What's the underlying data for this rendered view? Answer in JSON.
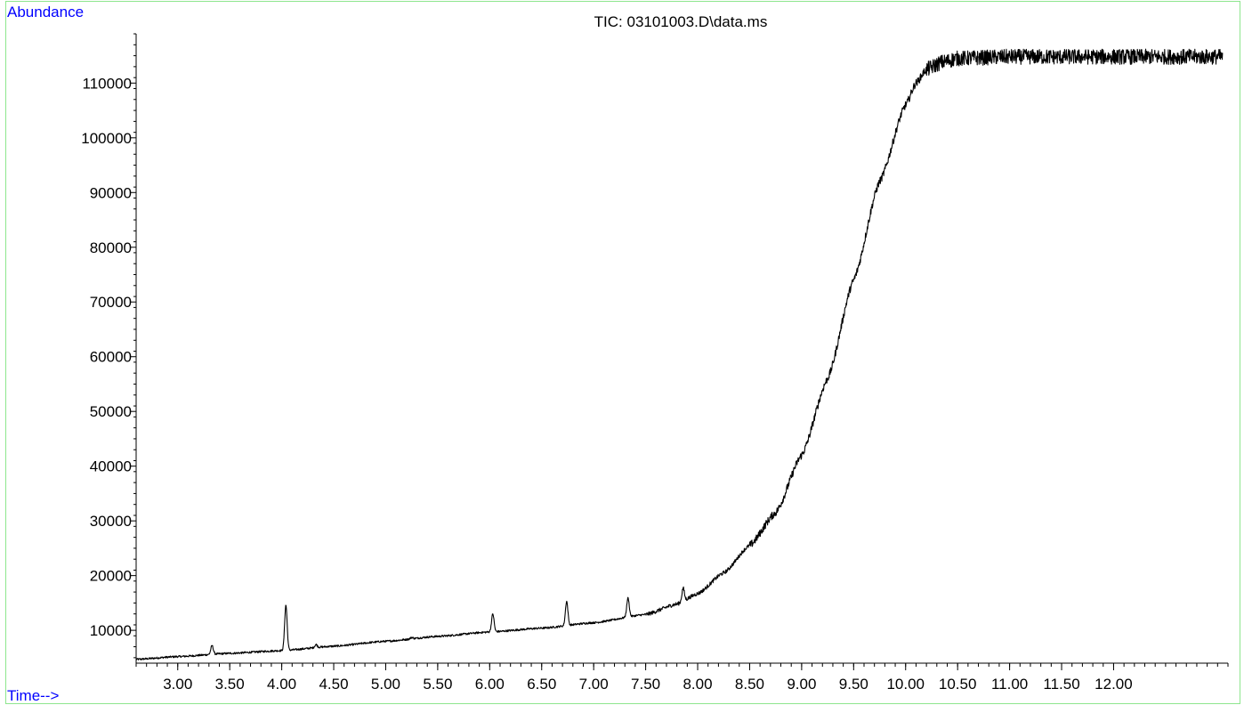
{
  "chart_data": {
    "type": "line",
    "title": "TIC: 03101003.D\\data.ms",
    "ylabel": "Abundance",
    "xlabel": "Time-->",
    "xlim": [
      2.6,
      13.1
    ],
    "ylim": [
      4000,
      119000
    ],
    "x_ticks": [
      3.0,
      3.5,
      4.0,
      4.5,
      5.0,
      5.5,
      6.0,
      6.5,
      7.0,
      7.5,
      8.0,
      8.5,
      9.0,
      9.5,
      10.0,
      10.5,
      11.0,
      11.5,
      12.0
    ],
    "x_tick_labels": [
      "3.00",
      "3.50",
      "4.00",
      "4.50",
      "5.00",
      "5.50",
      "6.00",
      "6.50",
      "7.00",
      "7.50",
      "8.00",
      "8.50",
      "9.00",
      "9.50",
      "10.00",
      "10.50",
      "11.00",
      "11.50",
      "12.00"
    ],
    "y_ticks": [
      10000,
      20000,
      30000,
      40000,
      50000,
      60000,
      70000,
      80000,
      90000,
      100000,
      110000
    ],
    "y_tick_labels": [
      "10000",
      "20000",
      "30000",
      "40000",
      "50000",
      "60000",
      "70000",
      "80000",
      "90000",
      "100000",
      "110000"
    ],
    "series": [
      {
        "x": [
          2.6,
          3.0,
          3.5,
          4.0,
          4.5,
          5.0,
          5.5,
          6.0,
          6.5,
          7.0,
          7.5,
          7.8,
          8.0,
          8.25,
          8.5,
          8.75,
          9.0,
          9.25,
          9.5,
          9.75,
          10.0,
          10.1,
          10.2,
          10.35,
          10.5,
          11.0,
          11.5,
          12.0,
          12.5,
          13.05
        ],
        "y": [
          4700,
          5200,
          5800,
          6300,
          7100,
          8000,
          8900,
          9700,
          10400,
          11400,
          12900,
          14800,
          16700,
          20500,
          25500,
          31500,
          42000,
          56000,
          74000,
          92000,
          106000,
          110000,
          112500,
          113800,
          114500,
          114800,
          114800,
          114800,
          114800,
          114800
        ]
      }
    ],
    "peaks": [
      {
        "x": 3.33,
        "y": 7200
      },
      {
        "x": 4.04,
        "y": 14600
      },
      {
        "x": 4.33,
        "y": 7400
      },
      {
        "x": 5.25,
        "y": 8700
      },
      {
        "x": 6.03,
        "y": 13000
      },
      {
        "x": 6.74,
        "y": 15300
      },
      {
        "x": 7.33,
        "y": 15900
      },
      {
        "x": 7.86,
        "y": 17700
      }
    ],
    "grid": false,
    "legend": "none"
  }
}
